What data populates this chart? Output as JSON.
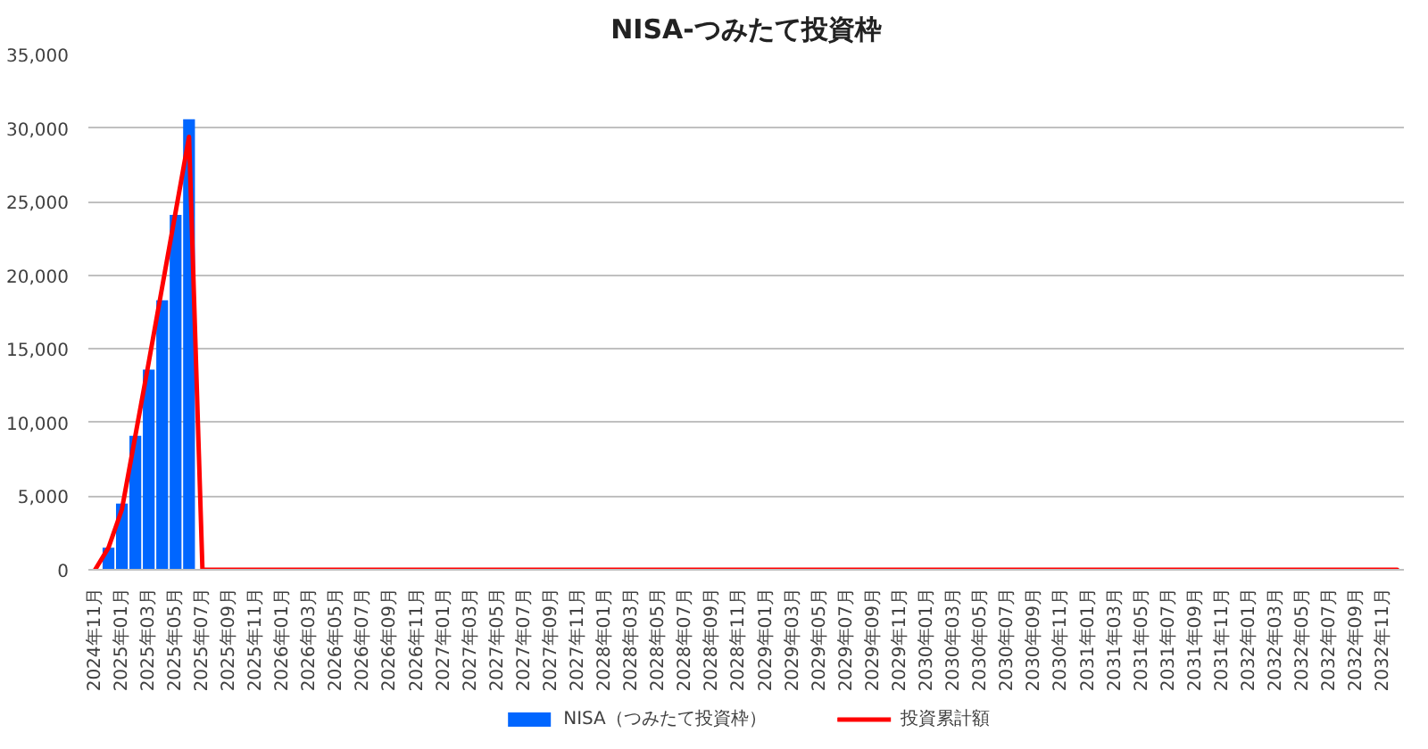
{
  "chart_data": {
    "type": "bar",
    "title": "NISA-つみたて投資枠",
    "categories": [
      "2024年11月",
      null,
      "2025年01月",
      null,
      "2025年03月",
      null,
      "2025年05月",
      null,
      "2025年07月",
      null,
      "2025年09月",
      null,
      "2025年11月",
      null,
      "2026年01月",
      null,
      "2026年03月",
      null,
      "2026年05月",
      null,
      "2026年07月",
      null,
      "2026年09月",
      null,
      "2026年11月",
      null,
      "2027年01月",
      null,
      "2027年03月",
      null,
      "2027年05月",
      null,
      "2027年07月",
      null,
      "2027年09月",
      null,
      "2027年11月",
      null,
      "2028年01月",
      null,
      "2028年03月",
      null,
      "2028年05月",
      null,
      "2028年07月",
      null,
      "2028年09月",
      null,
      "2028年11月",
      null,
      "2029年01月",
      null,
      "2029年03月",
      null,
      "2029年05月",
      null,
      "2029年07月",
      null,
      "2029年09月",
      null,
      "2029年11月",
      null,
      "2030年01月",
      null,
      "2030年03月",
      null,
      "2030年05月",
      null,
      "2030年07月",
      null,
      "2030年09月",
      null,
      "2030年11月",
      null,
      "2031年01月",
      null,
      "2031年03月",
      null,
      "2031年05月",
      null,
      "2031年07月",
      null,
      "2031年09月",
      null,
      "2031年11月",
      null,
      "2032年01月",
      null,
      "2032年03月",
      null,
      "2032年05月",
      null,
      "2032年07月",
      null,
      "2032年09月",
      null,
      "2032年11月",
      null
    ],
    "series": [
      {
        "name": "NISA（つみたて投資枠）",
        "color": "#0066ff",
        "values": [
          null,
          1500,
          4500,
          9100,
          13600,
          18300,
          24100,
          30600,
          null,
          null,
          null,
          null,
          null,
          null,
          null,
          null,
          null,
          null,
          null,
          null,
          null,
          null,
          null,
          null,
          null,
          null,
          null,
          null,
          null,
          null,
          null,
          null,
          null,
          null,
          null,
          null,
          null,
          null,
          null,
          null,
          null,
          null,
          null,
          null,
          null,
          null,
          null,
          null,
          null,
          null,
          null,
          null,
          null,
          null,
          null,
          null,
          null,
          null,
          null,
          null,
          null,
          null,
          null,
          null,
          null,
          null,
          null,
          null,
          null,
          null,
          null,
          null,
          null,
          null,
          null,
          null,
          null,
          null,
          null,
          null,
          null,
          null,
          null,
          null,
          null,
          null,
          null,
          null,
          null,
          null,
          null,
          null,
          null,
          null,
          null,
          null,
          null,
          null
        ]
      },
      {
        "name": "投資累計額",
        "type": "line",
        "color": "#ff0000",
        "values": [
          0,
          1500,
          4100,
          9100,
          14100,
          19200,
          24300,
          29400,
          0,
          0,
          0,
          0,
          0,
          0,
          0,
          0,
          0,
          0,
          0,
          0,
          0,
          0,
          0,
          0,
          0,
          0,
          0,
          0,
          0,
          0,
          0,
          0,
          0,
          0,
          0,
          0,
          0,
          0,
          0,
          0,
          0,
          0,
          0,
          0,
          0,
          0,
          0,
          0,
          0,
          0,
          0,
          0,
          0,
          0,
          0,
          0,
          0,
          0,
          0,
          0,
          0,
          0,
          0,
          0,
          0,
          0,
          0,
          0,
          0,
          0,
          0,
          0,
          0,
          0,
          0,
          0,
          0,
          0,
          0,
          0,
          0,
          0,
          0,
          0,
          0,
          0,
          0,
          0,
          0,
          0,
          0,
          0,
          0,
          0,
          0,
          0,
          0,
          0
        ]
      }
    ],
    "ylim": [
      0,
      35000
    ],
    "yticks": [
      0,
      {
        "value": 5000,
        "label": "5,000"
      },
      {
        "value": 10000,
        "label": "10,000"
      },
      {
        "value": 15000,
        "label": "15,000"
      },
      {
        "value": 20000,
        "label": "20,000"
      },
      {
        "value": 25000,
        "label": "25,000"
      },
      {
        "value": 30000,
        "label": "30,000"
      },
      {
        "value": 35000,
        "label": "35,000"
      }
    ],
    "grid": "y",
    "legend": "bottom"
  }
}
